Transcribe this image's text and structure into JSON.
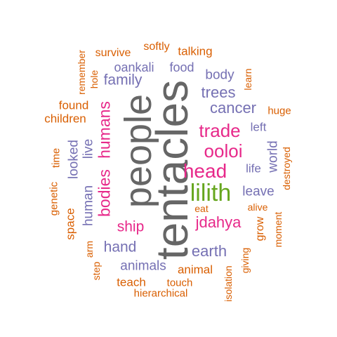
{
  "colors": {
    "gray": "#666666",
    "pink": "#e7298a",
    "purple": "#7570b3",
    "orange": "#d95f02",
    "green": "#66a61e"
  },
  "words": [
    {
      "text": "tentacles",
      "color": "gray",
      "vertical": true
    },
    {
      "text": "people",
      "color": "gray",
      "vertical": true
    },
    {
      "text": "lilith",
      "color": "green",
      "vertical": false
    },
    {
      "text": "head",
      "color": "pink",
      "vertical": false
    },
    {
      "text": "ooloi",
      "color": "pink",
      "vertical": false
    },
    {
      "text": "trade",
      "color": "pink",
      "vertical": false
    },
    {
      "text": "jdahya",
      "color": "pink",
      "vertical": false
    },
    {
      "text": "ship",
      "color": "pink",
      "vertical": false
    },
    {
      "text": "humans",
      "color": "pink",
      "vertical": true
    },
    {
      "text": "bodies",
      "color": "pink",
      "vertical": true
    },
    {
      "text": "cancer",
      "color": "purple",
      "vertical": false
    },
    {
      "text": "trees",
      "color": "purple",
      "vertical": false
    },
    {
      "text": "family",
      "color": "purple",
      "vertical": false
    },
    {
      "text": "oankali",
      "color": "purple",
      "vertical": false
    },
    {
      "text": "food",
      "color": "purple",
      "vertical": false
    },
    {
      "text": "body",
      "color": "purple",
      "vertical": false
    },
    {
      "text": "earth",
      "color": "purple",
      "vertical": false
    },
    {
      "text": "hand",
      "color": "purple",
      "vertical": false
    },
    {
      "text": "leave",
      "color": "purple",
      "vertical": false
    },
    {
      "text": "left",
      "color": "purple",
      "vertical": false
    },
    {
      "text": "life",
      "color": "purple",
      "vertical": false
    },
    {
      "text": "world",
      "color": "purple",
      "vertical": true
    },
    {
      "text": "looked",
      "color": "purple",
      "vertical": true
    },
    {
      "text": "human",
      "color": "purple",
      "vertical": true
    },
    {
      "text": "live",
      "color": "purple",
      "vertical": true
    },
    {
      "text": "animals",
      "color": "purple",
      "vertical": false
    },
    {
      "text": "survive",
      "color": "orange",
      "vertical": false
    },
    {
      "text": "softly",
      "color": "orange",
      "vertical": false
    },
    {
      "text": "talking",
      "color": "orange",
      "vertical": false
    },
    {
      "text": "remember",
      "color": "orange",
      "vertical": true
    },
    {
      "text": "hole",
      "color": "orange",
      "vertical": true
    },
    {
      "text": "learn",
      "color": "orange",
      "vertical": true
    },
    {
      "text": "found",
      "color": "orange",
      "vertical": false
    },
    {
      "text": "children",
      "color": "orange",
      "vertical": false
    },
    {
      "text": "huge",
      "color": "orange",
      "vertical": false
    },
    {
      "text": "time",
      "color": "orange",
      "vertical": true
    },
    {
      "text": "genetic",
      "color": "orange",
      "vertical": true
    },
    {
      "text": "space",
      "color": "orange",
      "vertical": true
    },
    {
      "text": "destroyed",
      "color": "orange",
      "vertical": true
    },
    {
      "text": "eat",
      "color": "orange",
      "vertical": false
    },
    {
      "text": "alive",
      "color": "orange",
      "vertical": false
    },
    {
      "text": "grow",
      "color": "orange",
      "vertical": true
    },
    {
      "text": "moment",
      "color": "orange",
      "vertical": true
    },
    {
      "text": "arm",
      "color": "orange",
      "vertical": true
    },
    {
      "text": "step",
      "color": "orange",
      "vertical": true
    },
    {
      "text": "animal",
      "color": "orange",
      "vertical": false
    },
    {
      "text": "giving",
      "color": "orange",
      "vertical": true
    },
    {
      "text": "teach",
      "color": "orange",
      "vertical": false
    },
    {
      "text": "touch",
      "color": "orange",
      "vertical": false
    },
    {
      "text": "hierarchical",
      "color": "orange",
      "vertical": false
    },
    {
      "text": "isolation",
      "color": "orange",
      "vertical": true
    }
  ]
}
